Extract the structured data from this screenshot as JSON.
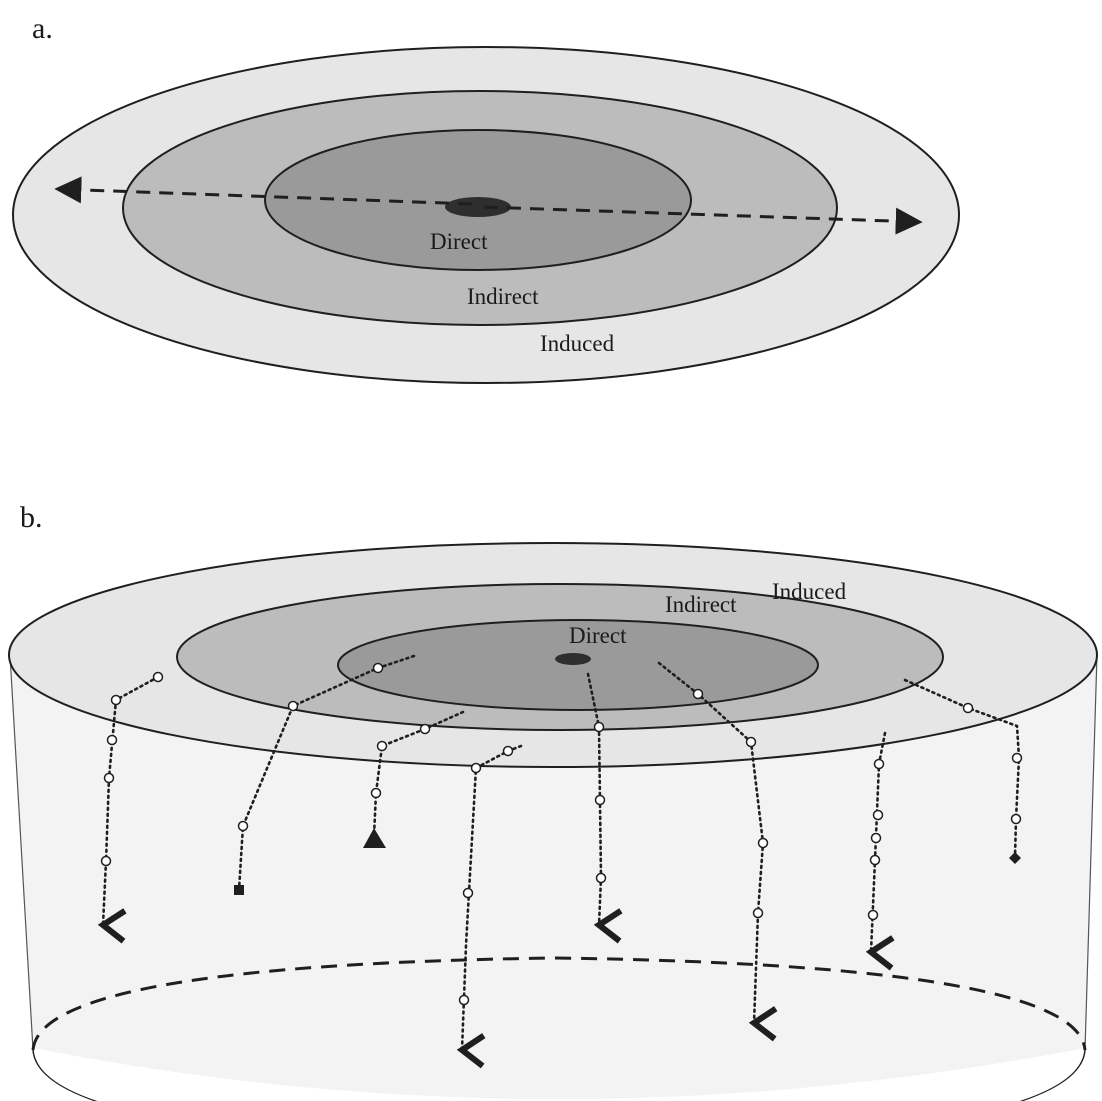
{
  "panels": {
    "a": {
      "label": "a.",
      "rings": {
        "direct": "Direct",
        "indirect": "Indirect",
        "induced": "Induced"
      }
    },
    "b": {
      "label": "b.",
      "rings": {
        "direct": "Direct",
        "indirect": "Indirect",
        "induced": "Induced"
      }
    }
  },
  "colors": {
    "outer_ring": "#e6e6e6",
    "middle_ring": "#bcbcbc",
    "inner_ring": "#9a9a9a",
    "center_dot": "#2e2e2e",
    "cylinder_side": "#f3f3f3",
    "stroke": "#1f1f1f"
  }
}
